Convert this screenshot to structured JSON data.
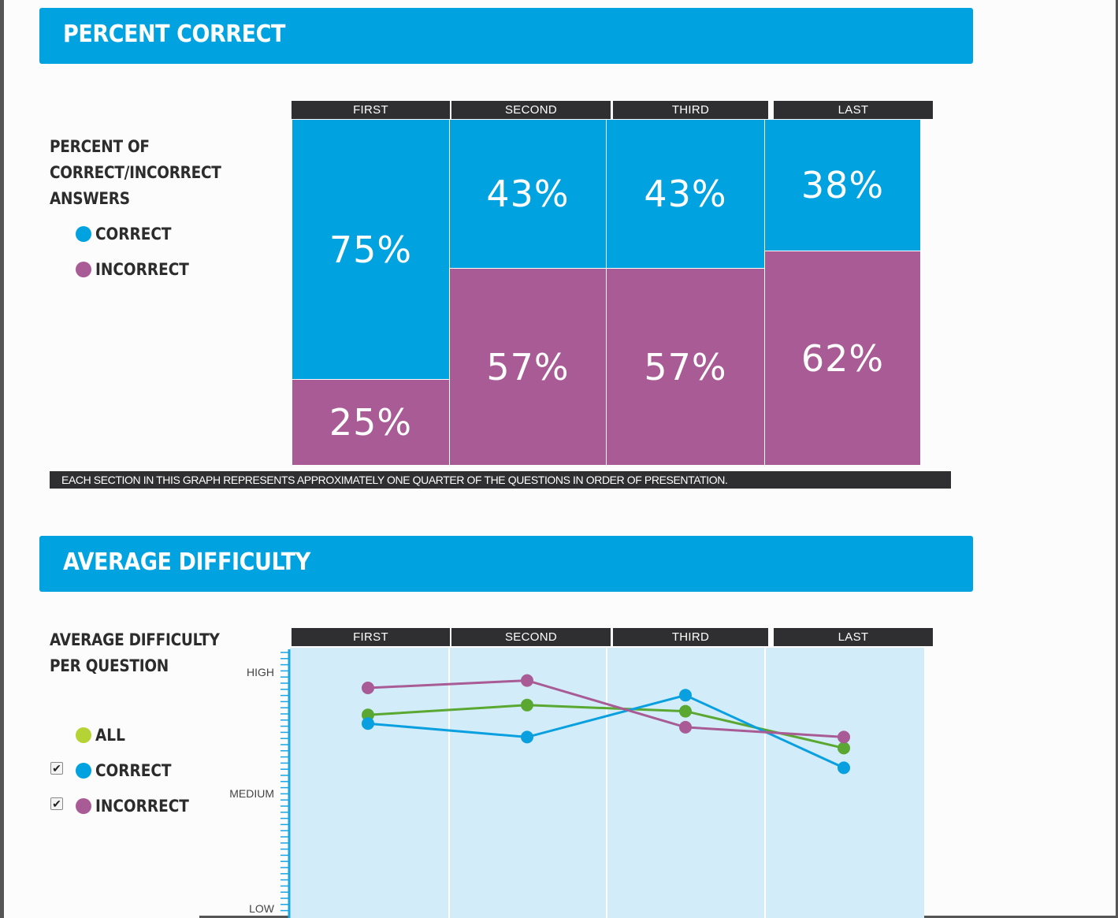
{
  "section1": {
    "title": "PERCENT CORRECT",
    "legend_title": [
      "PERCENT OF",
      "CORRECT/INCORRECT",
      "ANSWERS"
    ],
    "legend": [
      {
        "label": "CORRECT",
        "color": "#00a2e0"
      },
      {
        "label": "INCORRECT",
        "color": "#a85b94"
      }
    ],
    "footnote": "EACH SECTION IN THIS GRAPH REPRESENTS APPROXIMATELY ONE QUARTER OF THE QUESTIONS IN ORDER OF PRESENTATION."
  },
  "section2": {
    "title": "AVERAGE DIFFICULTY",
    "legend_title": [
      "AVERAGE DIFFICULTY",
      "PER QUESTION"
    ],
    "legend": [
      {
        "label": "ALL",
        "color": "#b5d334",
        "checkbox": false
      },
      {
        "label": "CORRECT",
        "color": "#00a2e0",
        "checkbox": true
      },
      {
        "label": "INCORRECT",
        "color": "#a85b94",
        "checkbox": true
      }
    ],
    "y_ticks": [
      "HIGH",
      "MEDIUM",
      "LOW"
    ]
  },
  "chart_data": [
    {
      "type": "bar",
      "stacked": true,
      "categories": [
        "FIRST",
        "SECOND",
        "THIRD",
        "LAST"
      ],
      "series": [
        {
          "name": "CORRECT",
          "values": [
            75,
            43,
            43,
            38
          ],
          "labels": [
            "75%",
            "43%",
            "43%",
            "38%"
          ],
          "color": "#00a2e0"
        },
        {
          "name": "INCORRECT",
          "values": [
            25,
            57,
            57,
            62
          ],
          "labels": [
            "25%",
            "57%",
            "57%",
            "62%"
          ],
          "color": "#a85b94"
        }
      ],
      "ylim": [
        0,
        100
      ]
    },
    {
      "type": "line",
      "categories": [
        "FIRST",
        "SECOND",
        "THIRD",
        "LAST"
      ],
      "y_scale": {
        "LOW": 0,
        "MEDIUM": 1,
        "HIGH": 2
      },
      "ylim": [
        0,
        2.2
      ],
      "series": [
        {
          "name": "ALL",
          "values": [
            1.62,
            1.7,
            1.65,
            1.35
          ],
          "color": "#5aa832"
        },
        {
          "name": "CORRECT",
          "values": [
            1.55,
            1.44,
            1.78,
            1.19
          ],
          "color": "#0aa0e0"
        },
        {
          "name": "INCORRECT",
          "values": [
            1.84,
            1.9,
            1.52,
            1.44
          ],
          "color": "#a85b94"
        }
      ]
    }
  ]
}
